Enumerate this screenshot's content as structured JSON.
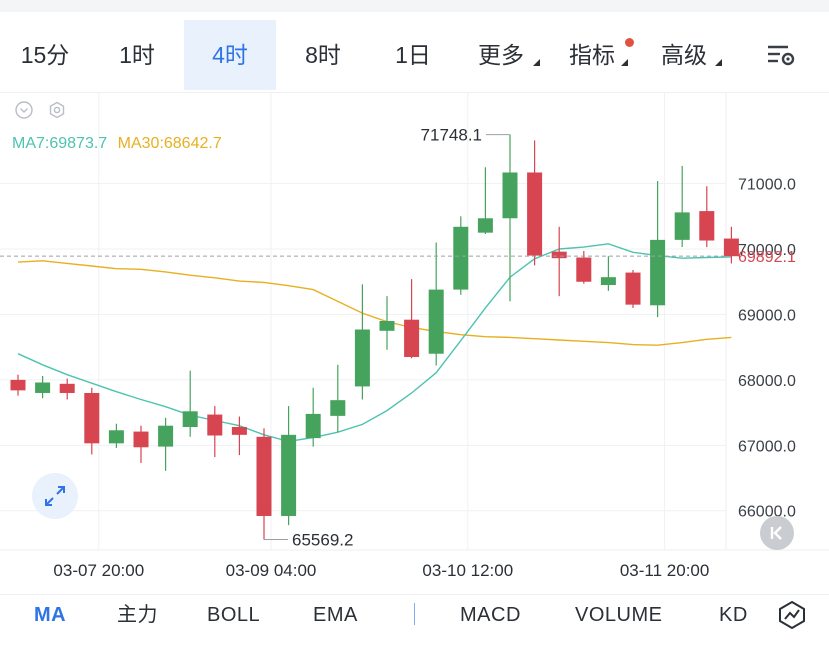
{
  "toolbar": {
    "timeframes": [
      "15分",
      "1时",
      "4时",
      "8时",
      "1日"
    ],
    "active_timeframe": "4时",
    "more_label": "更多",
    "indicators_label": "指标",
    "advanced_label": "高级"
  },
  "ma_legend": {
    "ma7": "MA7:69873.7",
    "ma30": "MA30:68642.7"
  },
  "colors": {
    "up": "#46a35e",
    "down": "#d64550",
    "ma7": "#4dc3b0",
    "ma30": "#e8b021",
    "accent": "#2f74e6"
  },
  "bottom_tabs": {
    "ma": "MA",
    "main": "主力",
    "boll": "BOLL",
    "ema": "EMA",
    "macd": "MACD",
    "volume": "VOLUME",
    "kd": "KD"
  },
  "chart_data": {
    "type": "candlestick",
    "y_axis_labels": [
      "71000.0",
      "70000.0",
      "69000.0",
      "68000.0",
      "67000.0",
      "66000.0"
    ],
    "ylim": [
      65400,
      72400
    ],
    "x_axis_labels": [
      "03-07 20:00",
      "03-09 04:00",
      "03-10 12:00",
      "03-11 20:00"
    ],
    "current_price": "69892.1",
    "max_label": "71748.1",
    "min_label": "65569.2",
    "candles": [
      {
        "o": 68000,
        "c": 67840,
        "h": 68080,
        "l": 67760
      },
      {
        "o": 67800,
        "c": 67960,
        "h": 68060,
        "l": 67720
      },
      {
        "o": 67940,
        "c": 67800,
        "h": 68020,
        "l": 67700
      },
      {
        "o": 67800,
        "c": 67030,
        "h": 67880,
        "l": 66860
      },
      {
        "o": 67030,
        "c": 67230,
        "h": 67330,
        "l": 66960
      },
      {
        "o": 67210,
        "c": 66970,
        "h": 67300,
        "l": 66730
      },
      {
        "o": 66980,
        "c": 67300,
        "h": 67420,
        "l": 66610
      },
      {
        "o": 67280,
        "c": 67520,
        "h": 68140,
        "l": 67130
      },
      {
        "o": 67470,
        "c": 67150,
        "h": 67600,
        "l": 66820
      },
      {
        "o": 67280,
        "c": 67160,
        "h": 67440,
        "l": 66850
      },
      {
        "o": 67130,
        "c": 65920,
        "h": 67260,
        "l": 65560
      },
      {
        "o": 65920,
        "c": 67160,
        "h": 67600,
        "l": 65780
      },
      {
        "o": 67110,
        "c": 67480,
        "h": 67880,
        "l": 66980
      },
      {
        "o": 67450,
        "c": 67690,
        "h": 68230,
        "l": 67200
      },
      {
        "o": 67900,
        "c": 68770,
        "h": 69460,
        "l": 67700
      },
      {
        "o": 68750,
        "c": 68900,
        "h": 69280,
        "l": 68460
      },
      {
        "o": 68920,
        "c": 68350,
        "h": 69540,
        "l": 68330
      },
      {
        "o": 68400,
        "c": 69380,
        "h": 70100,
        "l": 68220
      },
      {
        "o": 69380,
        "c": 70340,
        "h": 70500,
        "l": 69300
      },
      {
        "o": 70250,
        "c": 70470,
        "h": 71250,
        "l": 70230
      },
      {
        "o": 70470,
        "c": 71170,
        "h": 71748,
        "l": 69200
      },
      {
        "o": 71170,
        "c": 69900,
        "h": 71660,
        "l": 69750
      },
      {
        "o": 69960,
        "c": 69860,
        "h": 70340,
        "l": 69280
      },
      {
        "o": 69870,
        "c": 69500,
        "h": 69970,
        "l": 69470
      },
      {
        "o": 69450,
        "c": 69570,
        "h": 69890,
        "l": 69360
      },
      {
        "o": 69640,
        "c": 69150,
        "h": 69680,
        "l": 69100
      },
      {
        "o": 69140,
        "c": 70140,
        "h": 71040,
        "l": 68960
      },
      {
        "o": 70140,
        "c": 70560,
        "h": 71270,
        "l": 70030
      },
      {
        "o": 70580,
        "c": 70130,
        "h": 70960,
        "l": 70030
      },
      {
        "o": 70160,
        "c": 69890,
        "h": 70340,
        "l": 69780
      }
    ],
    "ma7": [
      68400,
      68230,
      68080,
      67950,
      67820,
      67700,
      67590,
      67460,
      67380,
      67300,
      67160,
      67060,
      67120,
      67200,
      67320,
      67530,
      67800,
      68110,
      68600,
      69100,
      69570,
      69850,
      70000,
      70030,
      70080,
      69950,
      69900,
      69860,
      69870,
      69880
    ],
    "ma30": [
      69800,
      69820,
      69780,
      69740,
      69700,
      69690,
      69650,
      69600,
      69560,
      69510,
      69490,
      69440,
      69380,
      69200,
      69020,
      68890,
      68800,
      68740,
      68690,
      68660,
      68650,
      68630,
      68610,
      68590,
      68570,
      68540,
      68530,
      68570,
      68620,
      68650
    ]
  }
}
